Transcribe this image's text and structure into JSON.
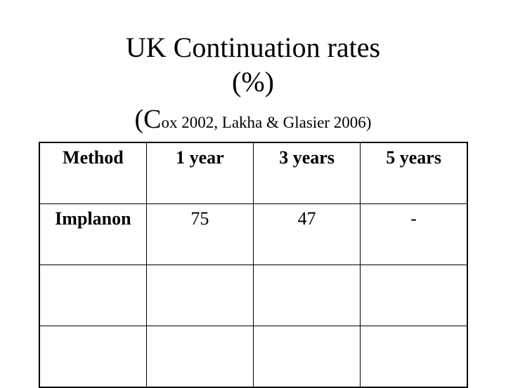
{
  "header": {
    "title": "UK Continuation rates",
    "unit": "(%)",
    "subtitle": "(Cox 2002, Lakha & Glasier 2006)"
  },
  "table": {
    "columns": [
      "Method",
      "1 year",
      "3 years",
      "5 years"
    ],
    "rows": [
      [
        "Implanon",
        "75",
        "47",
        "-"
      ]
    ]
  }
}
